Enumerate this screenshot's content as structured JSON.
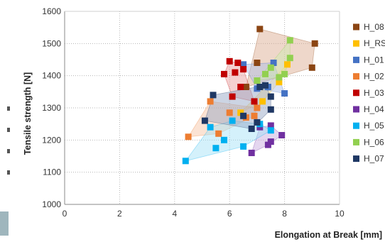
{
  "chart_data": {
    "type": "scatter",
    "title": "",
    "xlabel": "Elongation at Break [mm]",
    "ylabel": "Tensile strength [N]",
    "xlim": [
      0,
      10
    ],
    "ylim": [
      1000,
      1600
    ],
    "xticks": [
      0,
      2,
      4,
      6,
      8,
      10
    ],
    "yticks": [
      1000,
      1100,
      1200,
      1300,
      1400,
      1500,
      1600
    ],
    "grid": "dotted",
    "legend_placement": "right",
    "series": [
      {
        "name": "H_08",
        "color": "#8b4513",
        "hull_color": "#d9a78a",
        "points": [
          [
            7.1,
            1545
          ],
          [
            9.1,
            1500
          ],
          [
            9.0,
            1425
          ],
          [
            6.6,
            1365
          ],
          [
            7.0,
            1440
          ]
        ]
      },
      {
        "name": "H_RS",
        "color": "#ffc000",
        "hull_color": "#ffe08a",
        "points": [
          [
            8.1,
            1435
          ],
          [
            7.2,
            1320
          ],
          [
            6.4,
            1285
          ],
          [
            7.8,
            1380
          ]
        ]
      },
      {
        "name": "H_01",
        "color": "#4472c4",
        "hull_color": "#a9bde6",
        "points": [
          [
            6.5,
            1435
          ],
          [
            7.6,
            1440
          ],
          [
            8.0,
            1345
          ],
          [
            7.0,
            1360
          ],
          [
            7.4,
            1365
          ]
        ]
      },
      {
        "name": "H_02",
        "color": "#ed7d31",
        "hull_color": "#f6c1a0",
        "points": [
          [
            4.5,
            1210
          ],
          [
            5.3,
            1320
          ],
          [
            5.6,
            1220
          ],
          [
            6.0,
            1285
          ],
          [
            6.6,
            1270
          ],
          [
            7.0,
            1300
          ],
          [
            6.9,
            1275
          ]
        ]
      },
      {
        "name": "H_03",
        "color": "#c00000",
        "hull_color": "#e89a9a",
        "points": [
          [
            5.8,
            1405
          ],
          [
            6.0,
            1445
          ],
          [
            6.3,
            1440
          ],
          [
            6.5,
            1420
          ],
          [
            6.2,
            1410
          ],
          [
            6.4,
            1365
          ],
          [
            6.9,
            1320
          ],
          [
            6.1,
            1335
          ]
        ]
      },
      {
        "name": "H_04",
        "color": "#7030a0",
        "hull_color": "#c3a3dc",
        "points": [
          [
            6.8,
            1160
          ],
          [
            7.5,
            1195
          ],
          [
            7.9,
            1215
          ],
          [
            7.5,
            1245
          ],
          [
            7.1,
            1240
          ],
          [
            7.4,
            1185
          ]
        ]
      },
      {
        "name": "H_05",
        "color": "#00b0f0",
        "hull_color": "#9fdff7",
        "points": [
          [
            4.4,
            1135
          ],
          [
            5.5,
            1175
          ],
          [
            6.5,
            1180
          ],
          [
            7.5,
            1230
          ],
          [
            5.3,
            1240
          ],
          [
            6.1,
            1260
          ],
          [
            5.8,
            1200
          ],
          [
            7.1,
            1250
          ]
        ]
      },
      {
        "name": "H_06",
        "color": "#92d050",
        "hull_color": "#cdeab0",
        "points": [
          [
            8.2,
            1510
          ],
          [
            8.2,
            1455
          ],
          [
            7.5,
            1425
          ],
          [
            8.0,
            1405
          ],
          [
            7.8,
            1395
          ],
          [
            7.3,
            1405
          ],
          [
            7.0,
            1385
          ]
        ]
      },
      {
        "name": "H_07",
        "color": "#1f3864",
        "hull_color": "#8fa0c0",
        "points": [
          [
            5.1,
            1260
          ],
          [
            5.4,
            1340
          ],
          [
            6.5,
            1275
          ],
          [
            6.8,
            1235
          ],
          [
            7.0,
            1255
          ],
          [
            7.5,
            1295
          ],
          [
            7.5,
            1335
          ],
          [
            7.1,
            1365
          ],
          [
            7.3,
            1370
          ]
        ]
      }
    ]
  }
}
